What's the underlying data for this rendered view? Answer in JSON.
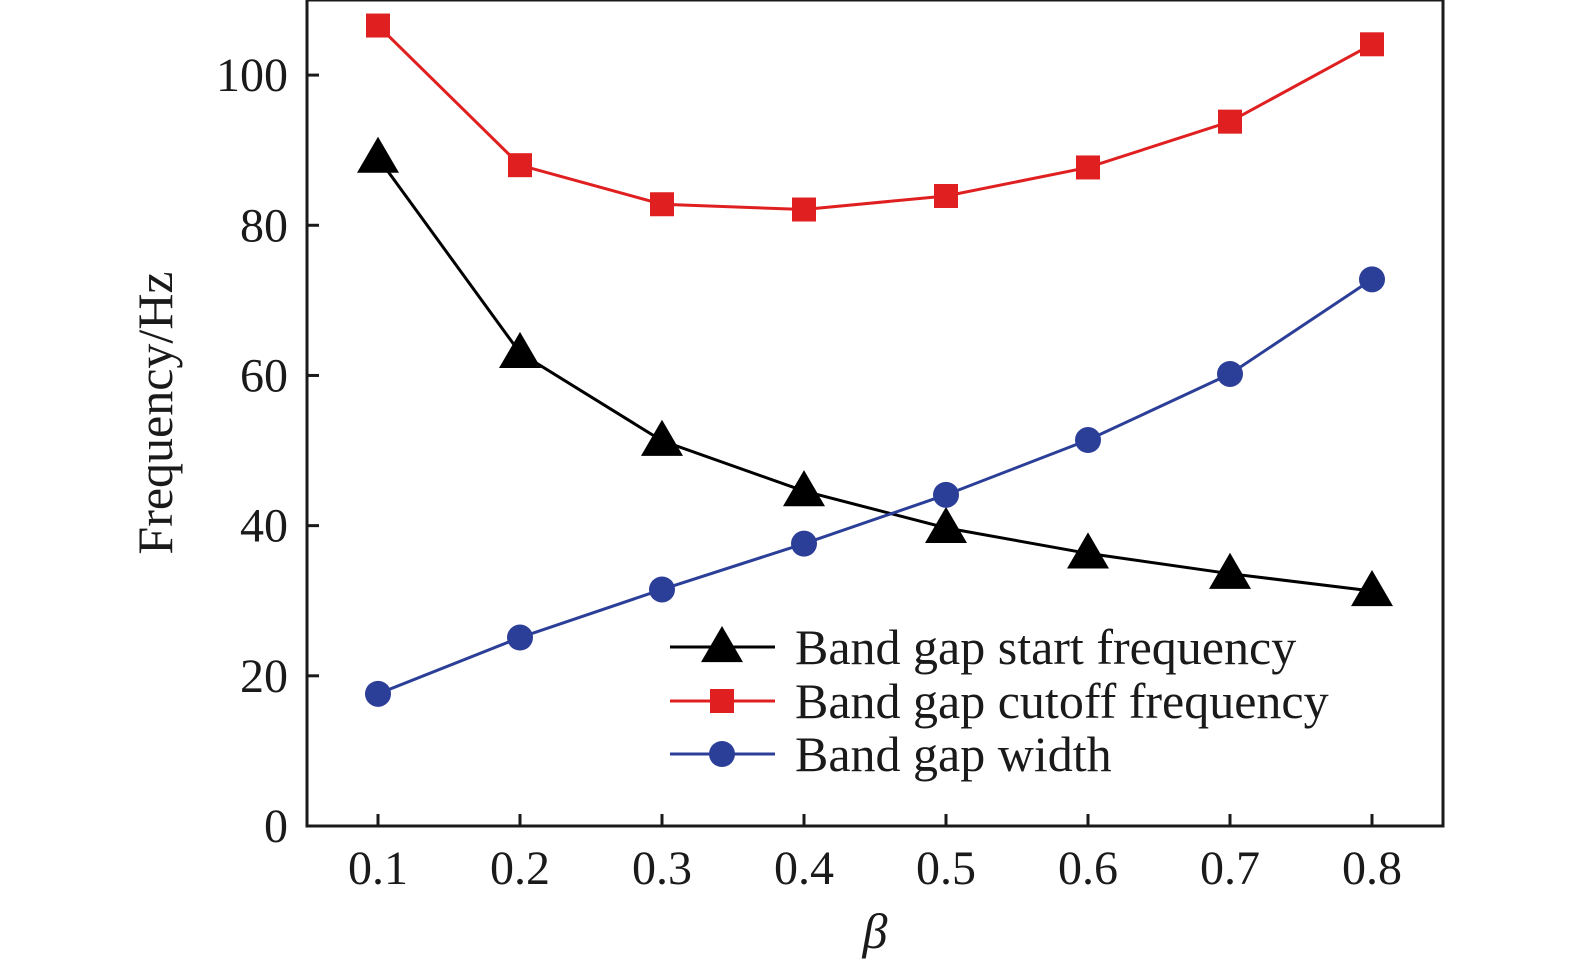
{
  "chart_data": {
    "type": "line",
    "xlabel": "β",
    "ylabel": "Frequency/Hz",
    "x": [
      0.1,
      0.2,
      0.3,
      0.4,
      0.5,
      0.6,
      0.7,
      0.8
    ],
    "xtick_labels": [
      "0.1",
      "0.2",
      "0.3",
      "0.4",
      "0.5",
      "0.6",
      "0.7",
      "0.8"
    ],
    "xlim": [
      0.05,
      0.85
    ],
    "yticks": [
      0,
      20,
      40,
      60,
      80,
      100
    ],
    "ytick_labels": [
      "0",
      "20",
      "40",
      "60",
      "80",
      "100"
    ],
    "ylim": [
      0,
      110
    ],
    "grid": false,
    "legend_position": "lower-right",
    "series": [
      {
        "name": "Band gap start frequency",
        "color": "#000000",
        "marker": "triangle",
        "values": [
          89,
          63,
          51.3,
          44.6,
          39.7,
          36.3,
          33.6,
          31.3
        ]
      },
      {
        "name": "Band gap cutoff frequency",
        "color": "#e02020",
        "marker": "square",
        "values": [
          106.6,
          88,
          82.8,
          82.1,
          83.9,
          87.7,
          93.8,
          104.1
        ]
      },
      {
        "name": "Band gap width",
        "color": "#2c3f98",
        "marker": "circle",
        "values": [
          17.6,
          25.1,
          31.5,
          37.6,
          44.1,
          51.4,
          60.2,
          72.8
        ]
      }
    ]
  }
}
